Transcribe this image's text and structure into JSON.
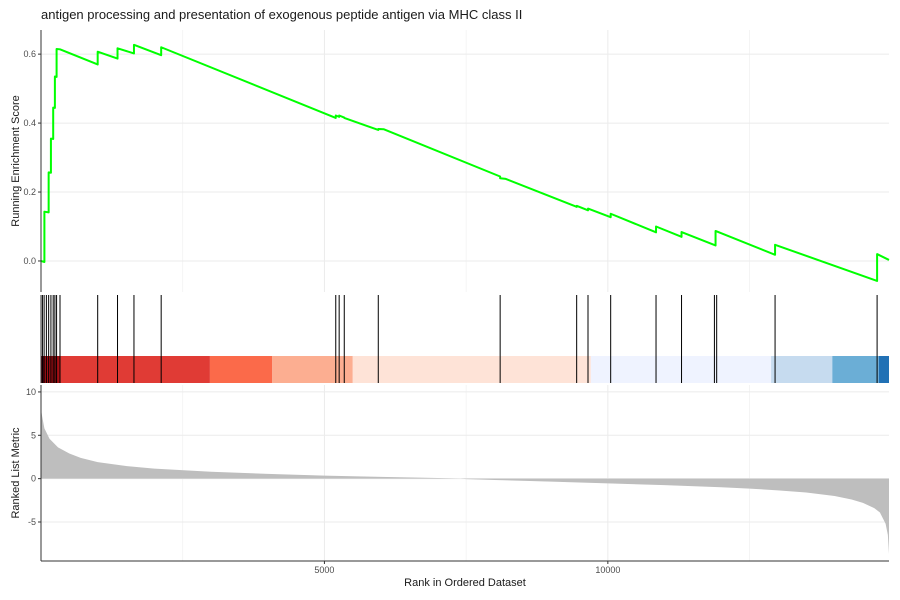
{
  "chart_data": {
    "type": "line",
    "title": "antigen processing and presentation of exogenous peptide antigen via MHC class II",
    "xlabel": "Rank in Ordered Dataset",
    "xlim": [
      0,
      14960
    ],
    "x_ticks": [
      5000,
      10000
    ],
    "x_tick_labels": [
      "5000",
      "10000"
    ],
    "grid": true,
    "panels": {
      "enrichment": {
        "ylabel": "Running Enrichment Score",
        "ylim": [
          -0.09,
          0.67
        ],
        "y_ticks": [
          0.0,
          0.2,
          0.4,
          0.6
        ],
        "y_tick_labels": [
          "0.0",
          "0.2",
          "0.4",
          "0.6"
        ],
        "line_color": "#00ff00",
        "series": [
          {
            "x": [
              0,
              60,
              60,
              135,
              135,
              175,
              175,
              215,
              215,
              245,
              245,
              275,
              275,
              335,
              335,
              1000,
              1000,
              1350,
              1350,
              1640,
              1640,
              2120,
              2120,
              5200,
              5200,
              5260,
              5260,
              5350,
              5350,
              5950,
              5950,
              6050,
              8100,
              8100,
              8200,
              9450,
              9450,
              9650,
              9650,
              10050,
              10050,
              10850,
              10850,
              11300,
              11300,
              11900,
              11900,
              12950,
              12950,
              14750,
              14750,
              14960
            ],
            "y": [
              0.0,
              -0.003,
              0.143,
              0.141,
              0.257,
              0.256,
              0.355,
              0.354,
              0.445,
              0.444,
              0.535,
              0.534,
              0.615,
              0.614,
              0.614,
              0.57,
              0.607,
              0.587,
              0.617,
              0.602,
              0.627,
              0.597,
              0.62,
              0.415,
              0.422,
              0.418,
              0.422,
              0.416,
              0.415,
              0.38,
              0.383,
              0.382,
              0.245,
              0.24,
              0.238,
              0.157,
              0.16,
              0.147,
              0.152,
              0.127,
              0.137,
              0.083,
              0.1,
              0.07,
              0.084,
              0.045,
              0.087,
              0.018,
              0.047,
              -0.058,
              0.02,
              0.003
            ]
          }
        ]
      },
      "hits": {
        "positions": [
          25,
          55,
          95,
          135,
          175,
          215,
          245,
          275,
          335,
          1000,
          1350,
          1640,
          2120,
          5200,
          5260,
          5350,
          5950,
          8100,
          9450,
          9650,
          10050,
          10850,
          11300,
          11880,
          11920,
          12950,
          14750
        ]
      },
      "color_bands": [
        {
          "from": 0,
          "to": 60,
          "color": "#67000d"
        },
        {
          "from": 60,
          "to": 340,
          "color": "#a50f15"
        },
        {
          "from": 340,
          "to": 2980,
          "color": "#e03b35"
        },
        {
          "from": 2980,
          "to": 4080,
          "color": "#fb6a4a"
        },
        {
          "from": 4080,
          "to": 5500,
          "color": "#fcae91"
        },
        {
          "from": 5500,
          "to": 9700,
          "color": "#fee3d7"
        },
        {
          "from": 9700,
          "to": 12880,
          "color": "#eff3ff"
        },
        {
          "from": 12880,
          "to": 13960,
          "color": "#c6dbef"
        },
        {
          "from": 13960,
          "to": 14780,
          "color": "#6baed6"
        },
        {
          "from": 14780,
          "to": 14960,
          "color": "#2171b5"
        }
      ],
      "ranked": {
        "ylabel": "Ranked List Metric",
        "ylim": [
          -9.5,
          10.8
        ],
        "y_ticks": [
          -5,
          0,
          5,
          10
        ],
        "y_tick_labels": [
          "-5",
          "0",
          "5",
          "10"
        ],
        "fill_color": "#bebebe",
        "x": [
          0,
          20,
          60,
          150,
          300,
          500,
          700,
          1000,
          1500,
          2000,
          3000,
          4000,
          5000,
          6000,
          7000,
          7400,
          7500,
          8000,
          9000,
          10000,
          11000,
          12000,
          12500,
          13000,
          13500,
          14000,
          14300,
          14500,
          14700,
          14800,
          14900,
          14940,
          14960
        ],
        "values": [
          8.0,
          7.2,
          5.8,
          4.6,
          3.6,
          2.9,
          2.4,
          1.9,
          1.45,
          1.15,
          0.8,
          0.55,
          0.35,
          0.2,
          0.08,
          0.0,
          -0.05,
          -0.15,
          -0.35,
          -0.55,
          -0.75,
          -1.0,
          -1.15,
          -1.35,
          -1.6,
          -2.0,
          -2.4,
          -2.8,
          -3.4,
          -3.9,
          -5.2,
          -6.5,
          -8.7
        ]
      }
    }
  }
}
